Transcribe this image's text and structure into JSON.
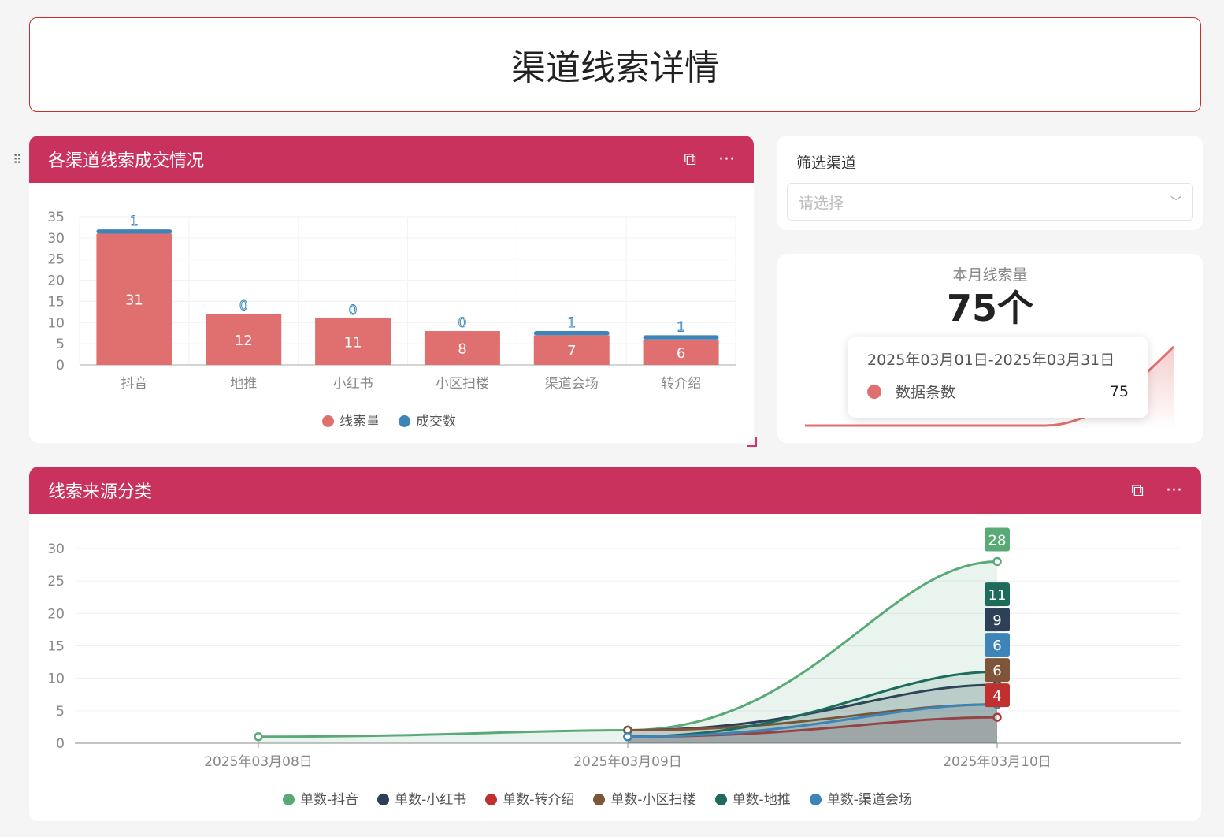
{
  "page_title": "渠道线索详情",
  "bar_card": {
    "title": "各渠道线索成交情况",
    "open_icon": "external-link-icon",
    "more_icon": "more-icon"
  },
  "filter": {
    "label": "筛选渠道",
    "placeholder": "请选择"
  },
  "kpi": {
    "label": "本月线索量",
    "value": "75个",
    "tooltip": {
      "date_range": "2025年03月01日-2025年03月31日",
      "series": "数据条数",
      "value": "75"
    }
  },
  "line_card": {
    "title": "线索来源分类"
  },
  "colors": {
    "header": "#c8325c",
    "lead": "#e07070",
    "deal": "#3d85b8"
  },
  "chart_data": [
    {
      "type": "bar",
      "stacked": true,
      "categories": [
        "抖音",
        "地推",
        "小红书",
        "小区扫楼",
        "渠道会场",
        "转介绍"
      ],
      "series": [
        {
          "name": "线索量",
          "color": "#e07070",
          "values": [
            31,
            12,
            11,
            8,
            7,
            6
          ]
        },
        {
          "name": "成交数",
          "color": "#3d85b8",
          "values": [
            1,
            0,
            0,
            0,
            1,
            1
          ]
        }
      ],
      "ylim": [
        0,
        35
      ],
      "yticks": [
        0,
        5,
        10,
        15,
        20,
        25,
        30,
        35
      ],
      "grid": true,
      "legend": "bottom"
    },
    {
      "type": "area",
      "categories": [
        "2025年03月08日",
        "2025年03月09日",
        "2025年03月10日"
      ],
      "ylim": [
        0,
        30
      ],
      "yticks": [
        0,
        5,
        10,
        15,
        20,
        25,
        30
      ],
      "grid": true,
      "legend": "bottom",
      "series": [
        {
          "name": "单数-抖音",
          "color": "#5aaa78",
          "values": [
            1,
            2,
            28
          ]
        },
        {
          "name": "单数-小红书",
          "color": "#2e4057",
          "values": [
            null,
            2,
            9
          ]
        },
        {
          "name": "单数-转介绍",
          "color": "#c0302f",
          "values": [
            null,
            1,
            4
          ]
        },
        {
          "name": "单数-小区扫楼",
          "color": "#7f5539",
          "values": [
            null,
            2,
            6
          ]
        },
        {
          "name": "单数-地推",
          "color": "#1e6b5c",
          "values": [
            null,
            1,
            11
          ]
        },
        {
          "name": "单数-渠道会场",
          "color": "#3d85b8",
          "values": [
            null,
            1,
            6
          ]
        }
      ]
    }
  ]
}
